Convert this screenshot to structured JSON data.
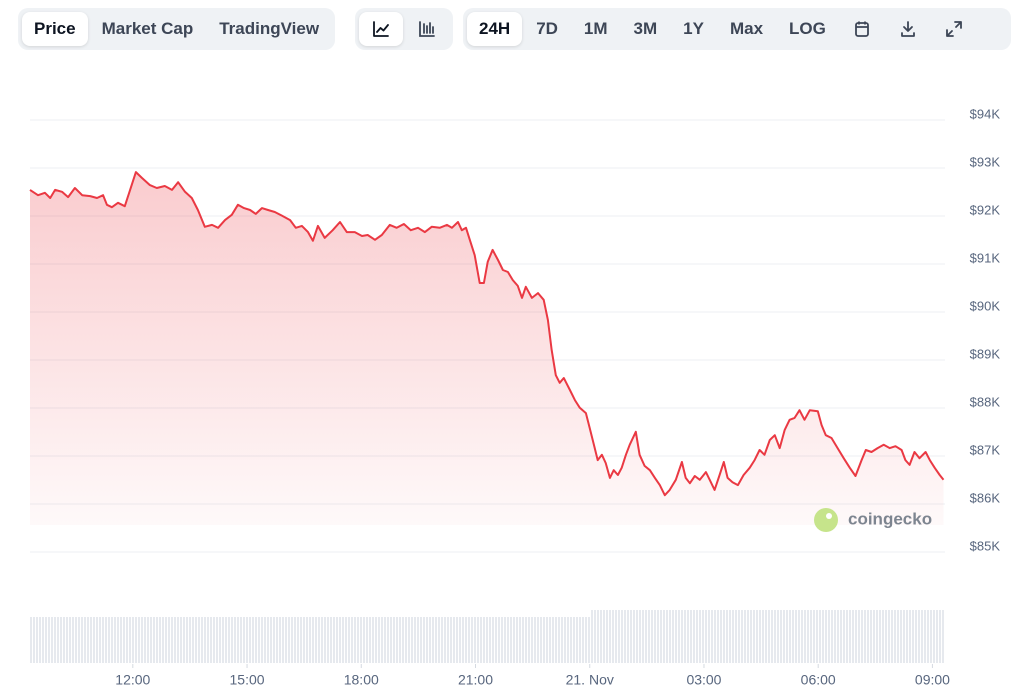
{
  "toolbar": {
    "tabs": [
      "Price",
      "Market Cap",
      "TradingView"
    ],
    "active_tab": 0,
    "ranges": [
      "24H",
      "7D",
      "1M",
      "3M",
      "1Y",
      "Max",
      "LOG"
    ],
    "active_range": 0
  },
  "chart_data": {
    "type": "area",
    "color": "#ea3943",
    "grid": true,
    "watermark": "coingecko",
    "x": [
      9.3,
      9.51,
      9.69,
      9.83,
      9.96,
      10.14,
      10.3,
      10.48,
      10.67,
      10.88,
      11.06,
      11.22,
      11.32,
      11.45,
      11.61,
      11.79,
      11.93,
      12.08,
      12.24,
      12.45,
      12.63,
      12.84,
      13.03,
      13.19,
      13.37,
      13.55,
      13.71,
      13.89,
      14.08,
      14.24,
      14.42,
      14.6,
      14.76,
      14.92,
      15.08,
      15.23,
      15.39,
      15.55,
      15.73,
      15.92,
      16.13,
      16.28,
      16.44,
      16.6,
      16.73,
      16.86,
      17.04,
      17.25,
      17.44,
      17.62,
      17.83,
      18.02,
      18.17,
      18.36,
      18.54,
      18.75,
      18.93,
      19.12,
      19.3,
      19.49,
      19.67,
      19.85,
      20.06,
      20.25,
      20.38,
      20.54,
      20.64,
      20.75,
      20.85,
      20.98,
      21.11,
      21.22,
      21.32,
      21.45,
      21.59,
      21.72,
      21.85,
      21.98,
      22.11,
      22.22,
      22.32,
      22.48,
      22.64,
      22.79,
      22.9,
      23.0,
      23.11,
      23.21,
      23.32,
      23.48,
      23.61,
      23.74,
      23.9,
      24.0,
      24.11,
      24.21,
      24.32,
      24.42,
      24.53,
      24.63,
      24.74,
      24.84,
      24.95,
      25.05,
      25.21,
      25.31,
      25.44,
      25.58,
      25.71,
      25.84,
      25.97,
      26.1,
      26.26,
      26.42,
      26.52,
      26.63,
      26.76,
      26.89,
      27.05,
      27.15,
      27.28,
      27.41,
      27.52,
      27.62,
      27.75,
      27.89,
      28.04,
      28.2,
      28.33,
      28.46,
      28.59,
      28.73,
      28.86,
      28.99,
      29.12,
      29.25,
      29.38,
      29.51,
      29.64,
      29.78,
      29.99,
      30.09,
      30.2,
      30.35,
      30.51,
      30.67,
      30.83,
      30.98,
      31.14,
      31.25,
      31.4,
      31.56,
      31.72,
      31.88,
      32.03,
      32.19,
      32.29,
      32.4,
      32.53,
      32.66,
      32.82,
      32.93,
      33.06,
      33.19,
      33.29
    ],
    "values": [
      92440,
      92330,
      92380,
      92270,
      92440,
      92400,
      92290,
      92480,
      92330,
      92310,
      92270,
      92330,
      92130,
      92080,
      92170,
      92100,
      92440,
      92810,
      92690,
      92540,
      92480,
      92520,
      92440,
      92600,
      92400,
      92270,
      92020,
      91670,
      91710,
      91650,
      91810,
      91920,
      92130,
      92060,
      92020,
      91940,
      92060,
      92020,
      91980,
      91900,
      91810,
      91650,
      91690,
      91560,
      91380,
      91690,
      91440,
      91600,
      91770,
      91560,
      91560,
      91480,
      91500,
      91400,
      91500,
      91710,
      91650,
      91730,
      91600,
      91650,
      91560,
      91670,
      91650,
      91710,
      91650,
      91770,
      91600,
      91650,
      91400,
      91080,
      90500,
      90500,
      90940,
      91190,
      90980,
      90770,
      90730,
      90560,
      90440,
      90190,
      90420,
      90190,
      90290,
      90150,
      89730,
      89100,
      88580,
      88420,
      88520,
      88270,
      88060,
      87900,
      87790,
      87480,
      87130,
      86810,
      86920,
      86750,
      86440,
      86600,
      86500,
      86650,
      86920,
      87130,
      87400,
      86920,
      86690,
      86600,
      86440,
      86290,
      86080,
      86190,
      86400,
      86770,
      86440,
      86330,
      86480,
      86400,
      86560,
      86400,
      86190,
      86500,
      86770,
      86440,
      86350,
      86290,
      86500,
      86650,
      86810,
      87020,
      86920,
      87230,
      87330,
      87060,
      87440,
      87650,
      87690,
      87850,
      87650,
      87850,
      87830,
      87540,
      87330,
      87270,
      87060,
      86850,
      86650,
      86480,
      86810,
      87020,
      86980,
      87060,
      87130,
      87060,
      87100,
      87020,
      86810,
      86710,
      86980,
      86850,
      86980,
      86810,
      86650,
      86500,
      86400
    ],
    "xlim": [
      9.3,
      33.33
    ],
    "xticks": [
      {
        "value": 12,
        "label": "12:00"
      },
      {
        "value": 15,
        "label": "15:00"
      },
      {
        "value": 18,
        "label": "18:00"
      },
      {
        "value": 21,
        "label": "21:00"
      },
      {
        "value": 24,
        "label": "21. Nov"
      },
      {
        "value": 27,
        "label": "03:00"
      },
      {
        "value": 30,
        "label": "06:00"
      },
      {
        "value": 33,
        "label": "09:00"
      }
    ],
    "ylim": [
      85000,
      94000
    ],
    "yticks": [
      {
        "value": 85000,
        "label": "$85K"
      },
      {
        "value": 86000,
        "label": "$86K"
      },
      {
        "value": 87000,
        "label": "$87K"
      },
      {
        "value": 88000,
        "label": "$88K"
      },
      {
        "value": 89000,
        "label": "$89K"
      },
      {
        "value": 90000,
        "label": "$90K"
      },
      {
        "value": 91000,
        "label": "$91K"
      },
      {
        "value": 92000,
        "label": "$92K"
      },
      {
        "value": 93000,
        "label": "$93K"
      },
      {
        "value": 94000,
        "label": "$94K"
      }
    ]
  }
}
